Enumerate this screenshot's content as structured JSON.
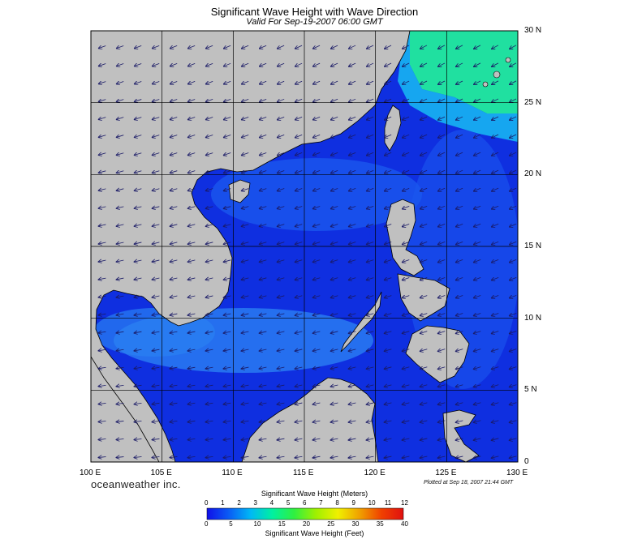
{
  "header": {
    "title": "Significant Wave Height with Wave Direction",
    "subtitle": "Valid For Sep-19-2007 06:00 GMT"
  },
  "map": {
    "lon_range": [
      100,
      130
    ],
    "lat_range": [
      0,
      30
    ],
    "lon_labels": [
      "100 E",
      "105 E",
      "110 E",
      "115 E",
      "120 E",
      "125 E",
      "130 E"
    ],
    "lat_labels": [
      "30 N",
      "25 N",
      "20 N",
      "15 N",
      "10 N",
      "5 N",
      "0"
    ],
    "colors": {
      "land": "#c0c0c0",
      "deep_sea": "#0f2fe0",
      "mid_sea": "#1a6cf0",
      "high_sea": "#2fd090",
      "grid": "#000000",
      "arrow": "#1a1a66"
    }
  },
  "footer": {
    "brand": "oceanweather inc.",
    "plotted": "Plotted at Sep 18, 2007 21:44 GMT"
  },
  "colorbar": {
    "title_meters": "Significant Wave Height (Meters)",
    "meters_ticks": [
      "0",
      "1",
      "2",
      "3",
      "4",
      "5",
      "6",
      "7",
      "8",
      "9",
      "10",
      "11",
      "12"
    ],
    "title_feet": "Significant Wave Height (Feet)",
    "feet_ticks": [
      "0",
      "5",
      "10",
      "15",
      "20",
      "25",
      "30",
      "35",
      "40"
    ],
    "stops": [
      "#1010e8",
      "#0a5cf5",
      "#00b8f5",
      "#00f0a0",
      "#30f040",
      "#a0f000",
      "#f0f000",
      "#f0a000",
      "#f04000",
      "#e01010"
    ]
  }
}
